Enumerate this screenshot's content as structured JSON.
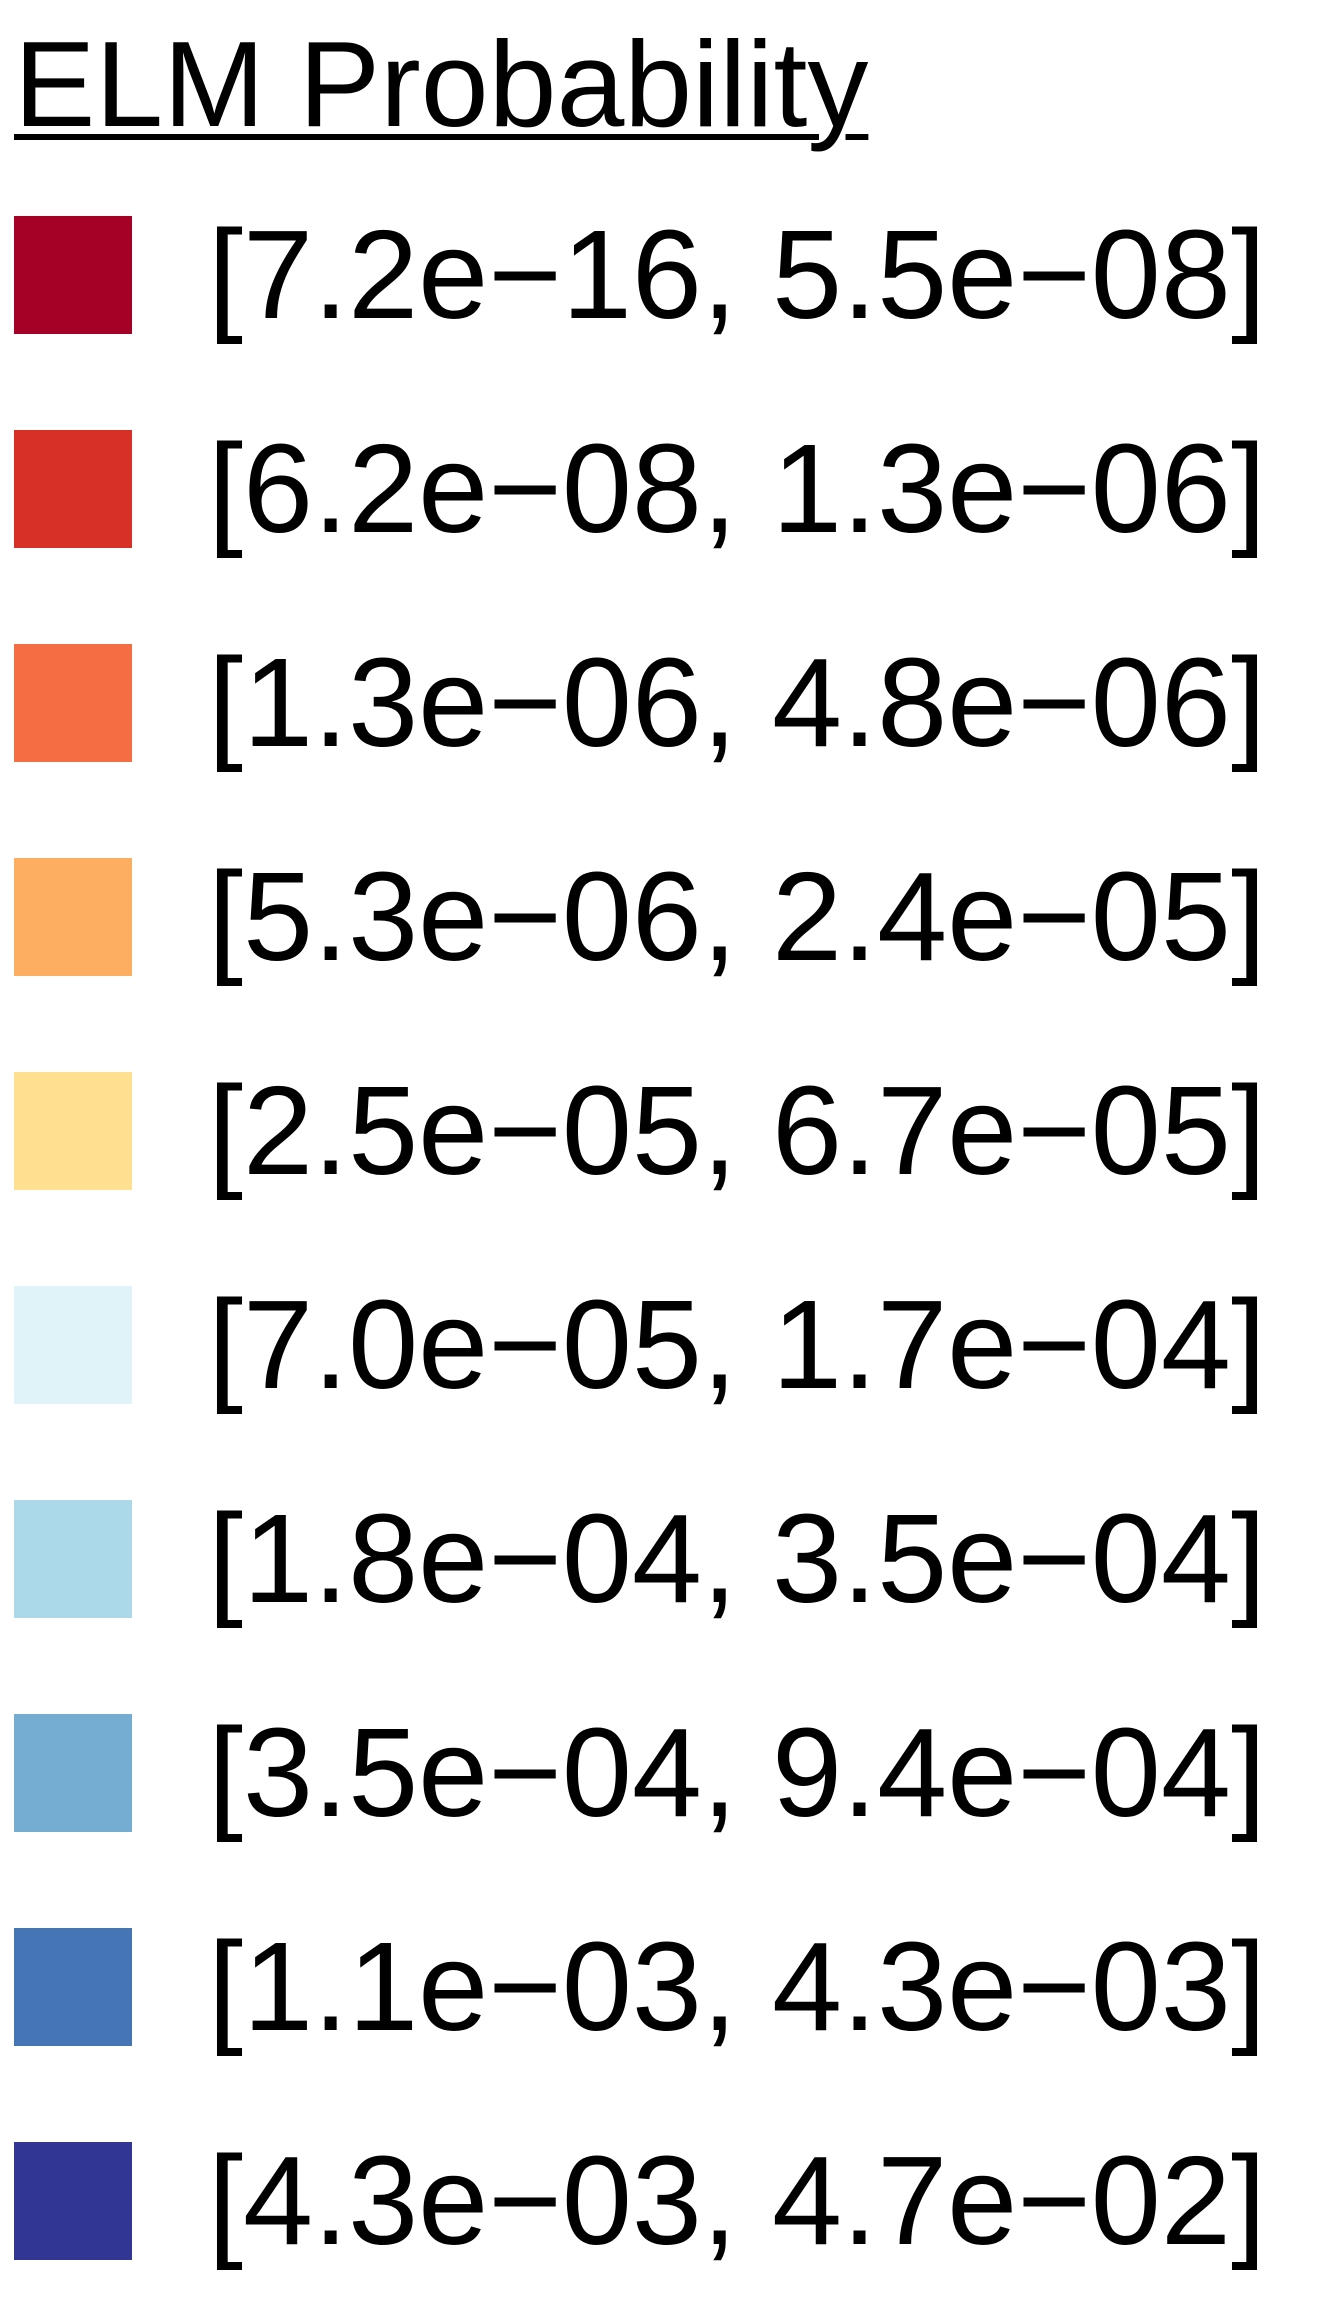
{
  "chart_data": {
    "type": "legend",
    "title": "ELM Probability",
    "items": [
      {
        "label": "[7.2e−16, 5.5e−08]",
        "color": "#a50026"
      },
      {
        "label": "[6.2e−08, 1.3e−06]",
        "color": "#d73027"
      },
      {
        "label": "[1.3e−06, 4.8e−06]",
        "color": "#f46d43"
      },
      {
        "label": "[5.3e−06, 2.4e−05]",
        "color": "#fdae61"
      },
      {
        "label": "[2.5e−05, 6.7e−05]",
        "color": "#fee090"
      },
      {
        "label": "[7.0e−05, 1.7e−04]",
        "color": "#e0f3f8"
      },
      {
        "label": "[1.8e−04, 3.5e−04]",
        "color": "#abd9e9"
      },
      {
        "label": "[3.5e−04, 9.4e−04]",
        "color": "#74add1"
      },
      {
        "label": "[1.1e−03, 4.3e−03]",
        "color": "#4575b4"
      },
      {
        "label": "[4.3e−03, 4.7e−02]",
        "color": "#313695"
      }
    ]
  }
}
